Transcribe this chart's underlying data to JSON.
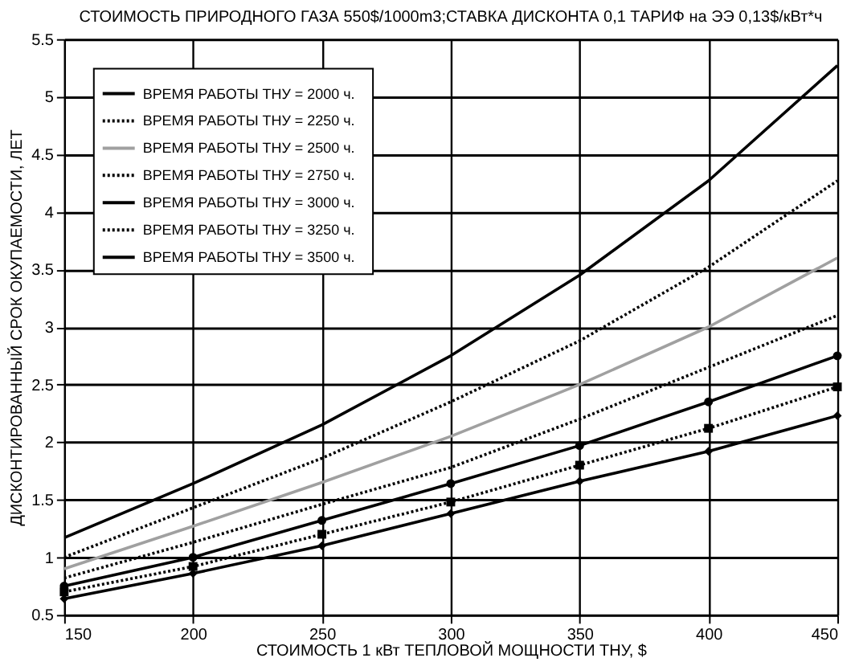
{
  "chart_data": {
    "type": "line",
    "title": "СТОИМОСТЬ ПРИРОДНОГО ГАЗА 550$/1000m3;СТАВКА ДИСКОНТА 0,1 ТАРИФ на ЭЭ 0,13$/кВт*ч",
    "xlabel": "СТОИМОСТЬ 1 кВт ТЕПЛОВОЙ МОЩНОСТИ ТНУ, $",
    "ylabel": "ДИСКОНТИРОВАННЫЙ СРОК ОКУПАЕМОСТИ, ЛЕТ",
    "x": [
      150,
      200,
      250,
      300,
      350,
      400,
      450
    ],
    "xlim": [
      150,
      450
    ],
    "xticks": [
      150,
      200,
      250,
      300,
      350,
      400,
      450
    ],
    "ylim": [
      0.5,
      5.5
    ],
    "yticks": [
      0.5,
      1,
      1.5,
      2,
      2.5,
      3,
      3.5,
      4,
      4.5,
      5,
      5.5
    ],
    "grid": true,
    "legend": "top left",
    "series": [
      {
        "name": "ВРЕМЯ РАБОТЫ ТНУ =   2000 ч.",
        "color": "#000000",
        "line_style": "solid",
        "marker": "none",
        "values": [
          1.17,
          1.64,
          2.15,
          2.75,
          3.45,
          4.27,
          5.27
        ]
      },
      {
        "name": "ВРЕМЯ РАБОТЫ ТНУ =   2250 ч.",
        "color": "#000000",
        "line_style": "dotted",
        "marker": "none",
        "values": [
          1.0,
          1.43,
          1.86,
          2.35,
          2.88,
          3.52,
          4.27
        ]
      },
      {
        "name": "ВРЕМЯ РАБОТЫ ТНУ =   2500 ч.",
        "color": "#a0a0a0",
        "line_style": "solid",
        "marker": "none",
        "values": [
          0.9,
          1.27,
          1.65,
          2.05,
          2.5,
          3.0,
          3.6
        ]
      },
      {
        "name": "ВРЕМЯ РАБОТЫ ТНУ =   2750 ч.",
        "color": "#000000",
        "line_style": "dotted",
        "marker": "none",
        "values": [
          0.82,
          1.13,
          1.46,
          1.78,
          2.2,
          2.65,
          3.1
        ]
      },
      {
        "name": "ВРЕМЯ РАБОТЫ ТНУ =   3000 ч.",
        "color": "#000000",
        "line_style": "solid",
        "marker": "circle",
        "values": [
          0.75,
          1.0,
          1.32,
          1.64,
          1.97,
          2.35,
          2.75
        ]
      },
      {
        "name": "ВРЕМЯ РАБОТЫ ТНУ =   3250 ч.",
        "color": "#000000",
        "line_style": "dotted",
        "marker": "square",
        "values": [
          0.7,
          0.92,
          1.2,
          1.48,
          1.8,
          2.12,
          2.48
        ]
      },
      {
        "name": "ВРЕМЯ РАБОТЫ ТНУ =   3500 ч.",
        "color": "#000000",
        "line_style": "solid",
        "marker": "diamond",
        "values": [
          0.64,
          0.86,
          1.1,
          1.38,
          1.66,
          1.92,
          2.23
        ]
      }
    ]
  }
}
